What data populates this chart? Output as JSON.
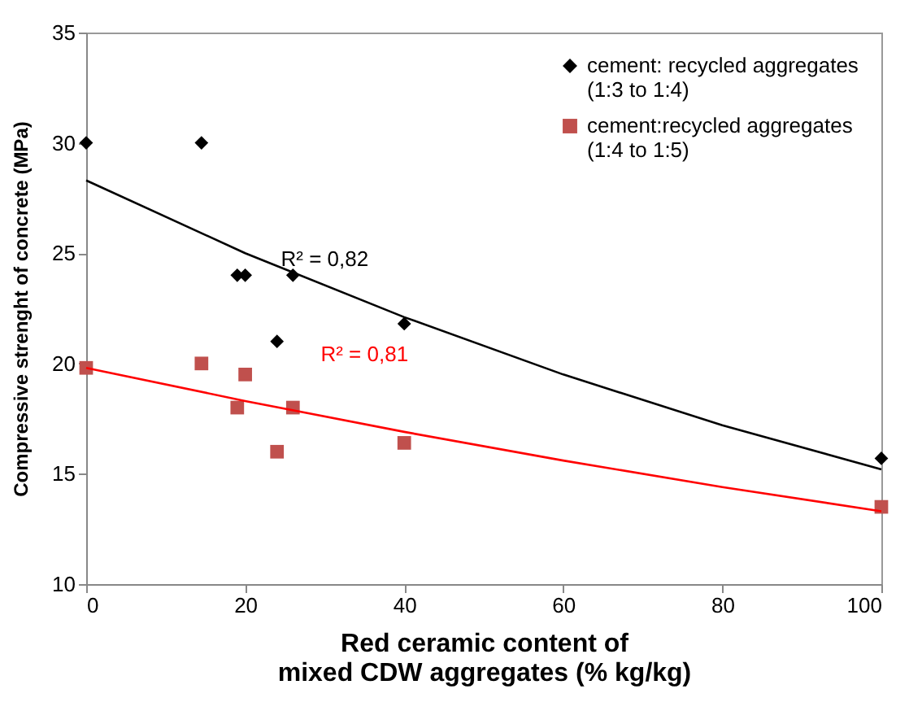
{
  "chart_data": {
    "type": "scatter",
    "xlabel": "Red ceramic content of\nmixed CDW aggregates  (% kg/kg)",
    "ylabel": "Compressive strenght of concrete (MPa)",
    "xlim": [
      0,
      100
    ],
    "xticks": [
      0,
      20,
      40,
      60,
      80,
      100
    ],
    "ylim": [
      10,
      35
    ],
    "yticks": [
      10,
      15,
      20,
      25,
      30,
      35
    ],
    "grid": false,
    "legend": "top right",
    "series": [
      {
        "name": "cement: recycled aggregates (1:3 to 1:4)",
        "color": "#000000",
        "marker": "diamond",
        "x": [
          0,
          14.5,
          19,
          20,
          24,
          26,
          40,
          100
        ],
        "values": [
          30,
          30,
          24,
          24,
          21,
          24,
          21.8,
          15.7
        ]
      },
      {
        "name": "cement:recycled aggregates (1:4 to 1:5)",
        "color": "#c0504d",
        "marker": "square",
        "x": [
          0,
          14.5,
          19,
          20,
          24,
          26,
          40,
          100
        ],
        "values": [
          19.8,
          20,
          18,
          19.5,
          16,
          18,
          16.4,
          13.5
        ]
      },
      {
        "type": "line",
        "color": "#000000",
        "x": [
          0,
          20,
          40,
          60,
          80,
          100
        ],
        "values": [
          28.3,
          25.0,
          22.1,
          19.5,
          17.2,
          15.2
        ]
      },
      {
        "type": "line",
        "color": "#ff0000",
        "x": [
          0,
          20,
          40,
          60,
          80,
          100
        ],
        "values": [
          19.8,
          18.3,
          16.9,
          15.6,
          14.4,
          13.3
        ]
      }
    ],
    "annotations": [
      "R² = 0,82",
      "R² = 0,81"
    ]
  }
}
